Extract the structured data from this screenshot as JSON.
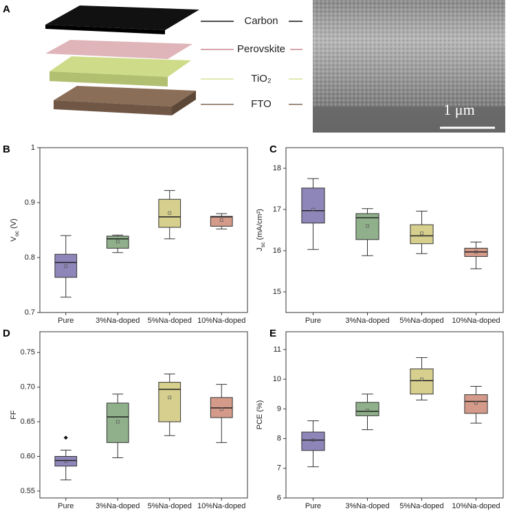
{
  "figure": {
    "panel": "A",
    "layers": [
      {
        "name": "Carbon",
        "color": "#111111"
      },
      {
        "name": "Perovskite",
        "color": "#c9868f"
      },
      {
        "name": "TiO₂",
        "color": "#d4e39a"
      },
      {
        "name": "FTO",
        "color": "#7d6550"
      }
    ],
    "scale_bar": "1 μm"
  },
  "chart_data": [
    {
      "type": "box",
      "panel": "B",
      "y_label": [
        {
          "text": "V"
        },
        {
          "text": "oc",
          "sub": true
        },
        {
          "text": " (V)"
        }
      ],
      "categories": [
        "Pure",
        "3%Na-doped",
        "5%Na-doped",
        "10%Na-doped"
      ],
      "ylim": [
        0.7,
        1.0
      ],
      "yticks": [
        0.7,
        0.8,
        0.9,
        1.0
      ],
      "boxes": [
        {
          "color": "#8e86b8",
          "whislo": 0.728,
          "q1": 0.764,
          "median": 0.791,
          "q3": 0.806,
          "whishi": 0.84,
          "mean": 0.784,
          "outliers": []
        },
        {
          "color": "#8fb08a",
          "whislo": 0.809,
          "q1": 0.817,
          "median": 0.834,
          "q3": 0.839,
          "whishi": 0.841,
          "mean": 0.829,
          "outliers": []
        },
        {
          "color": "#d6cf8e",
          "whislo": 0.834,
          "q1": 0.855,
          "median": 0.874,
          "q3": 0.906,
          "whishi": 0.922,
          "mean": 0.881,
          "outliers": []
        },
        {
          "color": "#d49a8a",
          "whislo": 0.852,
          "q1": 0.857,
          "median": 0.874,
          "q3": 0.875,
          "whishi": 0.88,
          "mean": 0.868,
          "outliers": []
        }
      ]
    },
    {
      "type": "box",
      "panel": "C",
      "y_label": [
        {
          "text": "J"
        },
        {
          "text": "sc",
          "sub": true
        },
        {
          "text": " (mA/cm²)"
        }
      ],
      "categories": [
        "Pure",
        "3%Na-doped",
        "5%Na-doped",
        "10%Na-doped"
      ],
      "ylim": [
        14.5,
        18.5
      ],
      "yticks": [
        15,
        16,
        17,
        18
      ],
      "boxes": [
        {
          "color": "#8e86b8",
          "whislo": 16.03,
          "q1": 16.67,
          "median": 16.97,
          "q3": 17.52,
          "whishi": 17.75,
          "mean": 17.0,
          "outliers": []
        },
        {
          "color": "#8fb08a",
          "whislo": 15.88,
          "q1": 16.27,
          "median": 16.8,
          "q3": 16.9,
          "whishi": 17.02,
          "mean": 16.6,
          "outliers": []
        },
        {
          "color": "#d6cf8e",
          "whislo": 15.93,
          "q1": 16.17,
          "median": 16.36,
          "q3": 16.63,
          "whishi": 16.96,
          "mean": 16.42,
          "outliers": []
        },
        {
          "color": "#d49a8a",
          "whislo": 15.56,
          "q1": 15.86,
          "median": 15.97,
          "q3": 16.06,
          "whishi": 16.21,
          "mean": 15.97,
          "outliers": []
        }
      ]
    },
    {
      "type": "box",
      "panel": "D",
      "y_label": [
        {
          "text": "FF"
        }
      ],
      "categories": [
        "Pure",
        "3%Na-doped",
        "5%Na-doped",
        "10%Na-doped"
      ],
      "ylim": [
        0.54,
        0.78
      ],
      "yticks": [
        0.55,
        0.6,
        0.65,
        0.7,
        0.75
      ],
      "ytick_labels": [
        "0.55",
        "0.60",
        "0.65",
        "0.70",
        "0.75"
      ],
      "boxes": [
        {
          "color": "#8e86b8",
          "whislo": 0.566,
          "q1": 0.586,
          "median": 0.594,
          "q3": 0.6,
          "whishi": 0.609,
          "mean": 0.593,
          "outliers": [
            0.627
          ]
        },
        {
          "color": "#8fb08a",
          "whislo": 0.598,
          "q1": 0.62,
          "median": 0.657,
          "q3": 0.677,
          "whishi": 0.69,
          "mean": 0.65,
          "outliers": []
        },
        {
          "color": "#d6cf8e",
          "whislo": 0.63,
          "q1": 0.65,
          "median": 0.697,
          "q3": 0.707,
          "whishi": 0.719,
          "mean": 0.685,
          "outliers": []
        },
        {
          "color": "#d49a8a",
          "whislo": 0.62,
          "q1": 0.656,
          "median": 0.67,
          "q3": 0.685,
          "whishi": 0.704,
          "mean": 0.668,
          "outliers": []
        }
      ]
    },
    {
      "type": "box",
      "panel": "E",
      "y_label": [
        {
          "text": "PCE (%)"
        }
      ],
      "categories": [
        "Pure",
        "3%Na-doped",
        "5%Na-doped",
        "10%Na-doped"
      ],
      "ylim": [
        6,
        11.6
      ],
      "yticks": [
        6,
        7,
        8,
        9,
        10,
        11
      ],
      "boxes": [
        {
          "color": "#8e86b8",
          "whislo": 7.05,
          "q1": 7.6,
          "median": 7.95,
          "q3": 8.22,
          "whishi": 8.6,
          "mean": 7.95,
          "outliers": []
        },
        {
          "color": "#8fb08a",
          "whislo": 8.3,
          "q1": 8.77,
          "median": 8.92,
          "q3": 9.22,
          "whishi": 9.5,
          "mean": 8.95,
          "outliers": []
        },
        {
          "color": "#d6cf8e",
          "whislo": 9.3,
          "q1": 9.5,
          "median": 9.95,
          "q3": 10.35,
          "whishi": 10.73,
          "mean": 10.0,
          "outliers": []
        },
        {
          "color": "#d49a8a",
          "whislo": 8.52,
          "q1": 8.85,
          "median": 9.25,
          "q3": 9.48,
          "whishi": 9.76,
          "mean": 9.2,
          "outliers": []
        }
      ]
    }
  ]
}
